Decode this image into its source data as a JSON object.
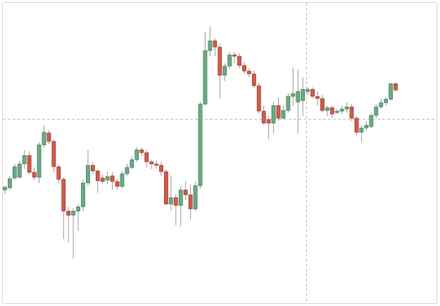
{
  "chart_data": {
    "type": "candlestick",
    "up_color": "#6aa984",
    "down_color": "#d0594a",
    "up_edge": "#3f6e52",
    "down_edge": "#8e3528",
    "wick_color": "#9a9a9a",
    "ylim": [
      0,
      435
    ],
    "open": [
      165,
      168,
      182,
      183,
      202,
      214,
      190,
      183,
      229,
      246,
      234,
      198,
      180,
      135,
      129,
      135,
      141,
      175,
      200,
      192,
      182,
      179,
      185,
      177,
      170,
      188,
      197,
      208,
      222,
      218,
      205,
      202,
      200,
      191,
      145,
      154,
      143,
      165,
      158,
      138,
      171,
      287,
      363,
      377,
      368,
      328,
      341,
      357,
      355,
      342,
      334,
      330,
      313,
      277,
      265,
      260,
      285,
      267,
      278,
      298,
      290,
      292,
      305,
      308,
      298,
      295,
      278,
      282,
      275,
      277,
      280,
      283,
      267,
      247,
      253,
      255,
      271,
      283,
      289,
      294,
      316
    ],
    "high": [
      171,
      185,
      202,
      206,
      222,
      220,
      197,
      233,
      257,
      250,
      237,
      202,
      183,
      141,
      139,
      145,
      180,
      222,
      205,
      195,
      187,
      191,
      190,
      181,
      192,
      202,
      213,
      226,
      225,
      222,
      208,
      207,
      205,
      195,
      185,
      159,
      171,
      177,
      173,
      177,
      290,
      390,
      397,
      380,
      373,
      345,
      361,
      361,
      359,
      347,
      338,
      335,
      317,
      285,
      270,
      290,
      297,
      285,
      302,
      339,
      336,
      325,
      311,
      311,
      305,
      300,
      285,
      285,
      280,
      285,
      290,
      287,
      270,
      257,
      263,
      275,
      287,
      295,
      297,
      317,
      318
    ],
    "low": [
      159,
      165,
      179,
      181,
      195,
      187,
      179,
      175,
      225,
      230,
      190,
      175,
      95,
      90,
      67,
      107,
      135,
      171,
      187,
      161,
      173,
      173,
      165,
      165,
      167,
      185,
      195,
      205,
      213,
      197,
      195,
      195,
      185,
      143,
      135,
      115,
      113,
      150,
      123,
      135,
      167,
      285,
      355,
      355,
      295,
      320,
      337,
      345,
      338,
      330,
      325,
      310,
      273,
      257,
      237,
      245,
      263,
      265,
      275,
      285,
      245,
      270,
      300,
      295,
      285,
      275,
      270,
      267,
      273,
      273,
      275,
      263,
      243,
      233,
      249,
      253,
      267,
      280,
      285,
      292,
      305
    ],
    "close": [
      169,
      181,
      198,
      202,
      214,
      190,
      183,
      229,
      247,
      234,
      198,
      180,
      135,
      129,
      135,
      141,
      175,
      200,
      192,
      178,
      177,
      184,
      177,
      170,
      188,
      197,
      208,
      222,
      218,
      205,
      202,
      200,
      191,
      145,
      154,
      143,
      165,
      158,
      138,
      171,
      287,
      363,
      377,
      368,
      328,
      341,
      357,
      355,
      342,
      334,
      330,
      313,
      277,
      260,
      260,
      285,
      267,
      278,
      298,
      302,
      305,
      308,
      308,
      298,
      295,
      278,
      282,
      273,
      277,
      280,
      283,
      267,
      247,
      253,
      257,
      271,
      283,
      289,
      294,
      316,
      307
    ]
  }
}
